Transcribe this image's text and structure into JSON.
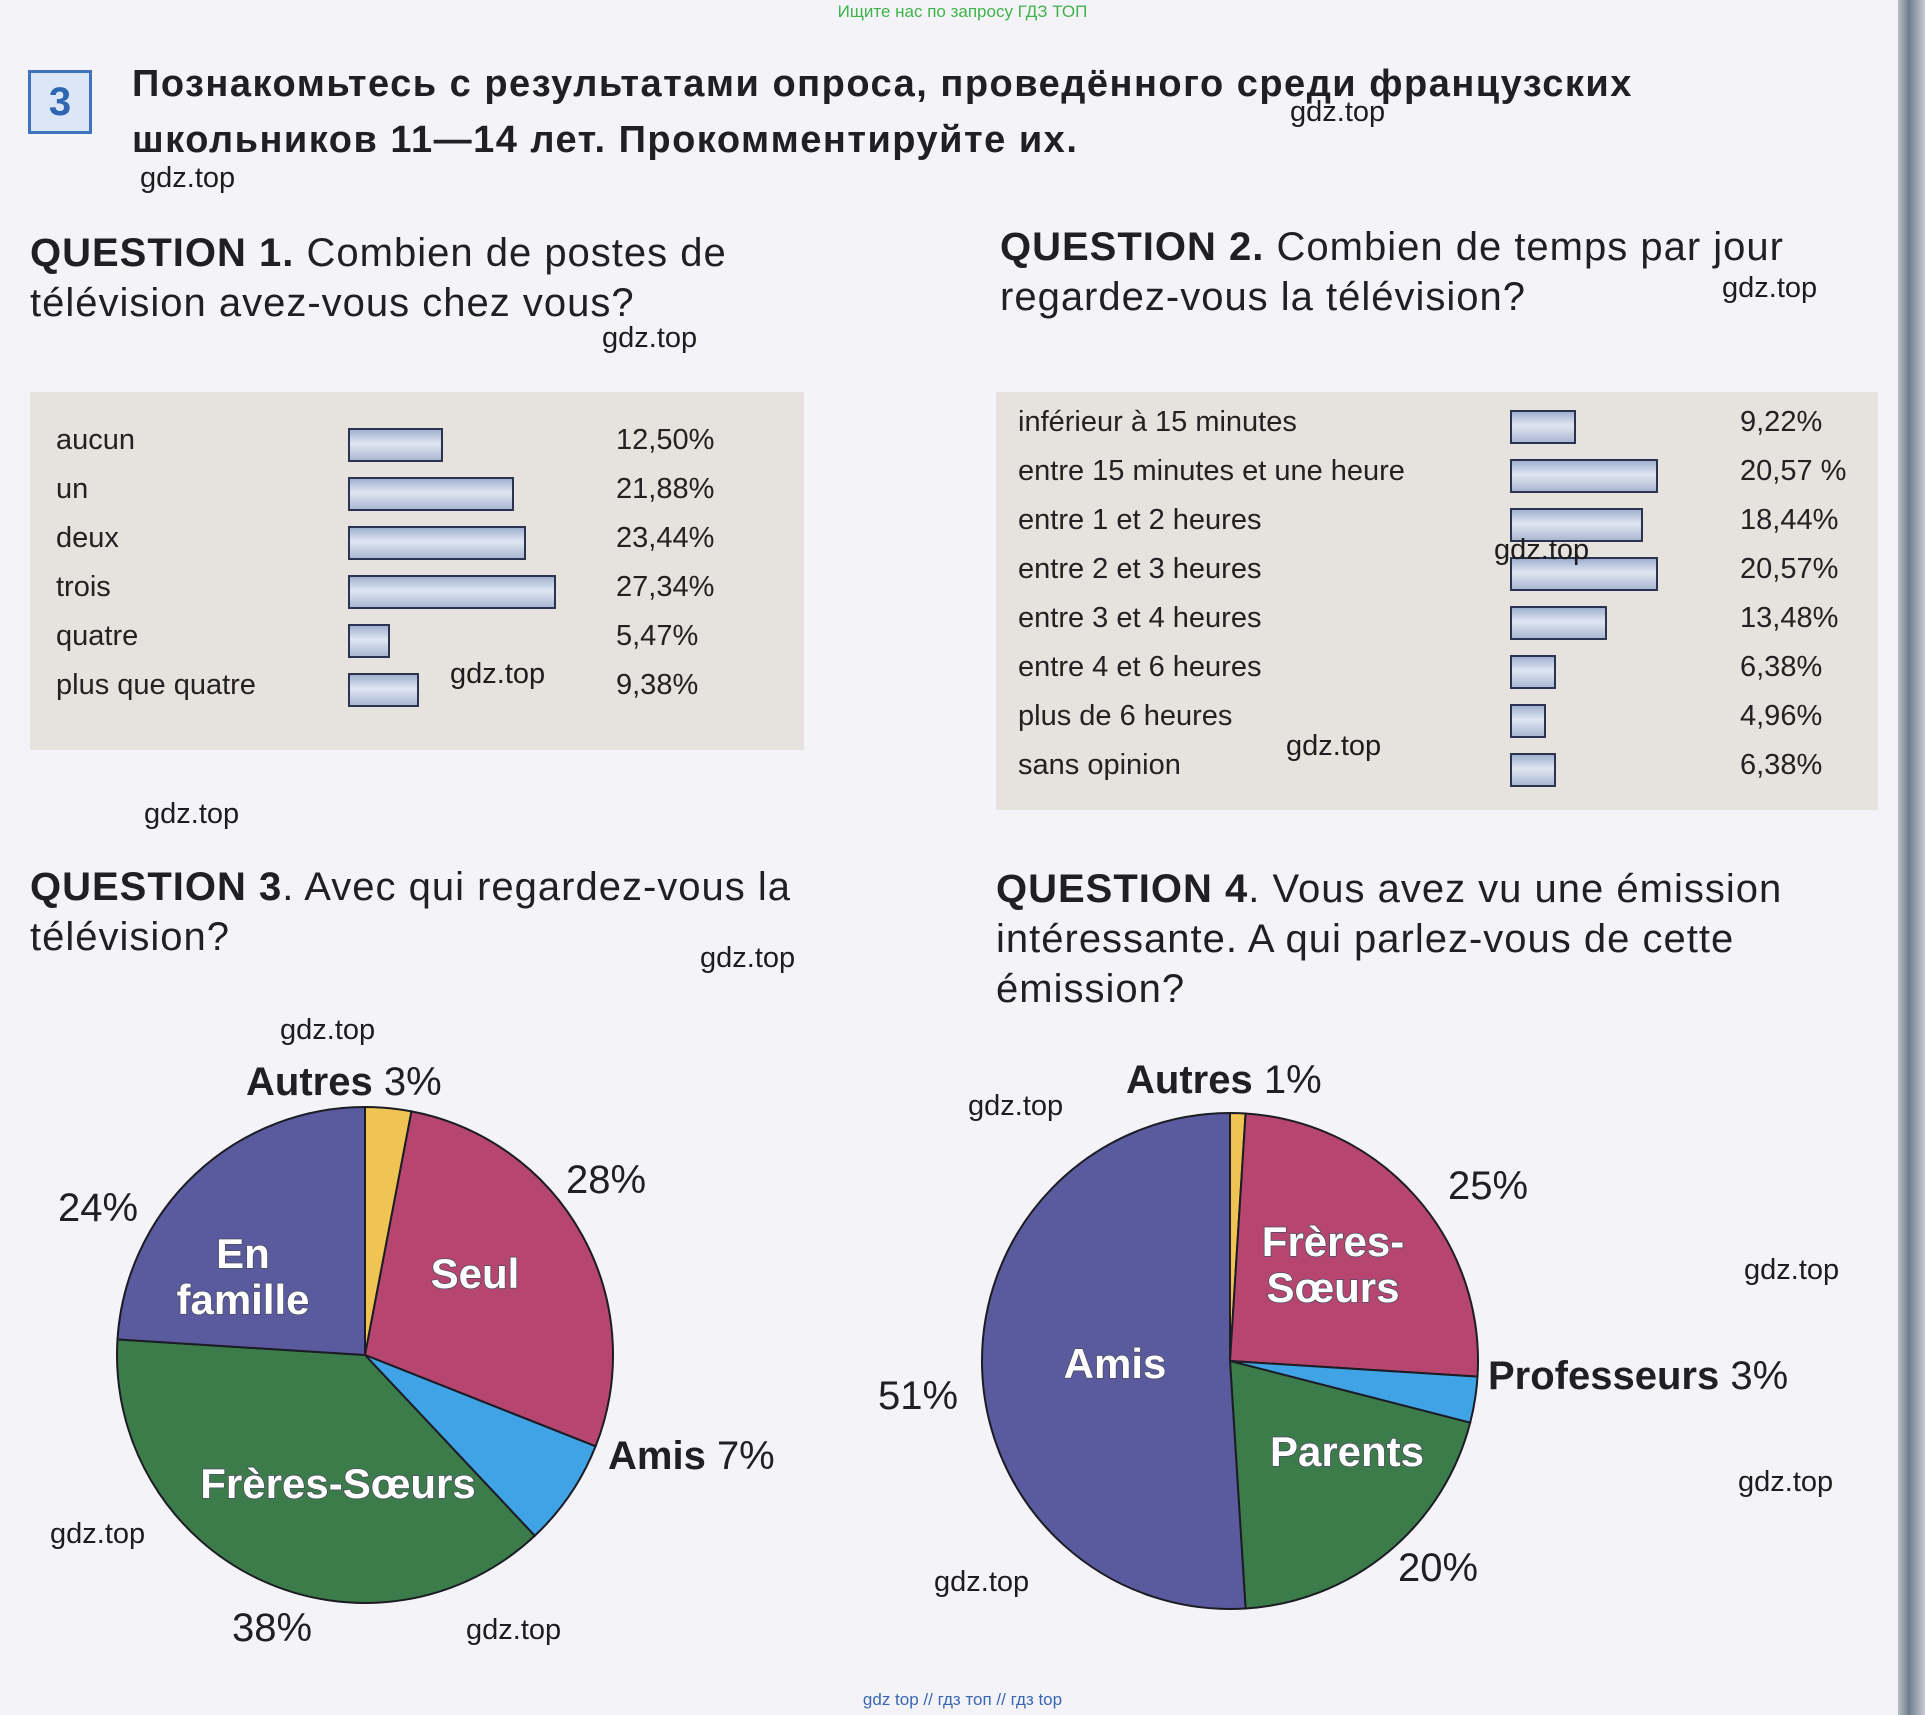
{
  "banner_top": "Ищите нас по запросу ГДЗ ТОП",
  "banner_bottom": "gdz top  //  гдз топ  //  гдз top",
  "task": {
    "number": "3",
    "title_line1": "Познакомьтесь с результатами опроса, проведённого среди французских",
    "title_line2": "школьников 11—14 лет. Прокомментируйте их."
  },
  "watermark": "gdz.top",
  "colors": {
    "blue": "#3fa3e6",
    "magenta": "#b6466f",
    "green": "#3b7c4a",
    "purple": "#5a5a9e",
    "yellow": "#f0c452"
  },
  "chart_data": [
    {
      "type": "bar",
      "question_label": "QUESTION 1.",
      "question_text": "Combien de postes de télévision avez-vous chez vous?",
      "categories": [
        "aucun",
        "un",
        "deux",
        "trois",
        "quatre",
        "plus que quatre"
      ],
      "values": [
        12.5,
        21.88,
        23.44,
        27.34,
        5.47,
        9.38
      ],
      "value_labels": [
        "12,50%",
        "21,88%",
        "23,44%",
        "27,34%",
        "5,47%",
        "9,38%"
      ]
    },
    {
      "type": "bar",
      "question_label": "QUESTION 2.",
      "question_text": "Combien de temps par jour regardez-vous la télévision?",
      "categories": [
        "inférieur à 15 minutes",
        "entre 15 minutes et une heure",
        "entre 1 et 2 heures",
        "entre 2 et 3 heures",
        "entre 3 et 4 heures",
        "entre 4 et 6 heures",
        "plus de 6 heures",
        "sans opinion"
      ],
      "values": [
        9.22,
        20.57,
        18.44,
        20.57,
        13.48,
        6.38,
        4.96,
        6.38
      ],
      "value_labels": [
        "9,22%",
        "20,57 %",
        "18,44%",
        "20,57%",
        "13,48%",
        "6,38%",
        "4,96%",
        "6,38%"
      ]
    },
    {
      "type": "pie",
      "question_label": "QUESTION 3",
      "question_text": ". Avec qui regardez-vous la télévision?",
      "slices": [
        {
          "name": "Autres",
          "value": 3,
          "label": "3%",
          "color": "#f0c452"
        },
        {
          "name": "Seul",
          "value": 28,
          "label": "28%",
          "color": "#b6466f"
        },
        {
          "name": "Amis",
          "value": 7,
          "label": "7%",
          "color": "#3fa3e6"
        },
        {
          "name": "Frères-Sœurs",
          "value": 38,
          "label": "38%",
          "color": "#3b7c4a"
        },
        {
          "name": "En famille",
          "value": 24,
          "label": "24%",
          "color": "#5a5a9e"
        }
      ]
    },
    {
      "type": "pie",
      "question_label": "QUESTION 4",
      "question_text": ". Vous avez vu une émission intéressante. A qui parlez-vous de cette émission?",
      "slices": [
        {
          "name": "Autres",
          "value": 1,
          "label": "1%",
          "color": "#f0c452"
        },
        {
          "name": "Frères-Sœurs",
          "value": 25,
          "label": "25%",
          "color": "#b6466f"
        },
        {
          "name": "Professeurs",
          "value": 3,
          "label": "3%",
          "color": "#3fa3e6"
        },
        {
          "name": "Parents",
          "value": 20,
          "label": "20%",
          "color": "#3b7c4a"
        },
        {
          "name": "Amis",
          "value": 51,
          "label": "51%",
          "color": "#5a5a9e"
        }
      ]
    }
  ]
}
